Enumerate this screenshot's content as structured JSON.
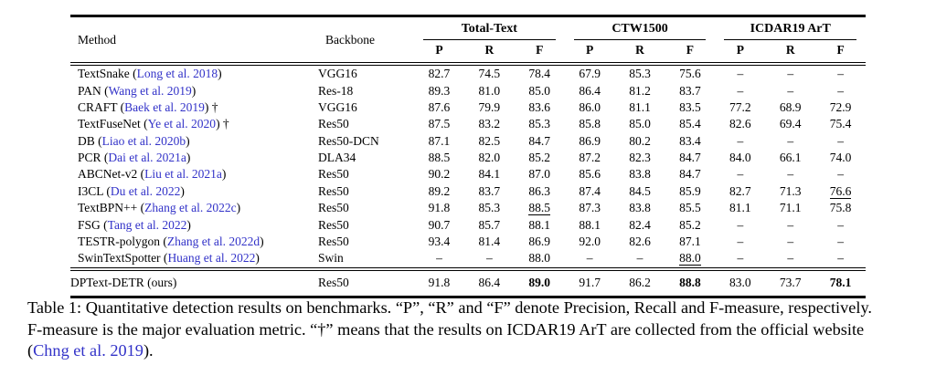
{
  "colors": {
    "citation_link": "#3232c8",
    "text": "#000000",
    "rule": "#000000",
    "background": "#ffffff"
  },
  "table": {
    "headers": {
      "method": "Method",
      "backbone": "Backbone",
      "groups": [
        {
          "label": "Total-Text"
        },
        {
          "label": "CTW1500"
        },
        {
          "label": "ICDAR19 ArT"
        }
      ],
      "metrics": [
        "P",
        "R",
        "F"
      ]
    },
    "missing_value_glyph": "–",
    "rows": [
      {
        "pre": "TextSnake (",
        "cite": "Long et al. 2018",
        "post": ")",
        "backbone": "VGG16",
        "values": [
          "82.7",
          "74.5",
          "78.4",
          "67.9",
          "85.3",
          "75.6",
          "–",
          "–",
          "–"
        ],
        "bold": [],
        "underline": [],
        "ours": false
      },
      {
        "pre": "PAN (",
        "cite": "Wang et al. 2019",
        "post": ")",
        "backbone": "Res-18",
        "values": [
          "89.3",
          "81.0",
          "85.0",
          "86.4",
          "81.2",
          "83.7",
          "–",
          "–",
          "–"
        ],
        "bold": [],
        "underline": [],
        "ours": false
      },
      {
        "pre": "CRAFT (",
        "cite": "Baek et al. 2019",
        "post": ") †",
        "backbone": "VGG16",
        "values": [
          "87.6",
          "79.9",
          "83.6",
          "86.0",
          "81.1",
          "83.5",
          "77.2",
          "68.9",
          "72.9"
        ],
        "bold": [],
        "underline": [],
        "ours": false
      },
      {
        "pre": "TextFuseNet (",
        "cite": "Ye et al. 2020",
        "post": ") †",
        "backbone": "Res50",
        "values": [
          "87.5",
          "83.2",
          "85.3",
          "85.8",
          "85.0",
          "85.4",
          "82.6",
          "69.4",
          "75.4"
        ],
        "bold": [],
        "underline": [],
        "ours": false
      },
      {
        "pre": "DB (",
        "cite": "Liao et al. 2020b",
        "post": ")",
        "backbone": "Res50-DCN",
        "values": [
          "87.1",
          "82.5",
          "84.7",
          "86.9",
          "80.2",
          "83.4",
          "–",
          "–",
          "–"
        ],
        "bold": [],
        "underline": [],
        "ours": false
      },
      {
        "pre": "PCR (",
        "cite": "Dai et al. 2021a",
        "post": ")",
        "backbone": "DLA34",
        "values": [
          "88.5",
          "82.0",
          "85.2",
          "87.2",
          "82.3",
          "84.7",
          "84.0",
          "66.1",
          "74.0"
        ],
        "bold": [],
        "underline": [],
        "ours": false
      },
      {
        "pre": "ABCNet-v2 (",
        "cite": "Liu et al. 2021a",
        "post": ")",
        "backbone": "Res50",
        "values": [
          "90.2",
          "84.1",
          "87.0",
          "85.6",
          "83.8",
          "84.7",
          "–",
          "–",
          "–"
        ],
        "bold": [],
        "underline": [],
        "ours": false
      },
      {
        "pre": "I3CL (",
        "cite": "Du et al. 2022",
        "post": ")",
        "backbone": "Res50",
        "values": [
          "89.2",
          "83.7",
          "86.3",
          "87.4",
          "84.5",
          "85.9",
          "82.7",
          "71.3",
          "76.6"
        ],
        "bold": [],
        "underline": [
          8
        ],
        "ours": false
      },
      {
        "pre": "TextBPN++ (",
        "cite": "Zhang et al. 2022c",
        "post": ")",
        "backbone": "Res50",
        "values": [
          "91.8",
          "85.3",
          "88.5",
          "87.3",
          "83.8",
          "85.5",
          "81.1",
          "71.1",
          "75.8"
        ],
        "bold": [],
        "underline": [
          2
        ],
        "ours": false
      },
      {
        "pre": "FSG (",
        "cite": "Tang et al. 2022",
        "post": ")",
        "backbone": "Res50",
        "values": [
          "90.7",
          "85.7",
          "88.1",
          "88.1",
          "82.4",
          "85.2",
          "–",
          "–",
          "–"
        ],
        "bold": [],
        "underline": [],
        "ours": false
      },
      {
        "pre": "TESTR-polygon (",
        "cite": "Zhang et al. 2022d",
        "post": ")",
        "backbone": "Res50",
        "values": [
          "93.4",
          "81.4",
          "86.9",
          "92.0",
          "82.6",
          "87.1",
          "–",
          "–",
          "–"
        ],
        "bold": [],
        "underline": [],
        "ours": false
      },
      {
        "pre": "SwinTextSpotter (",
        "cite": "Huang et al. 2022",
        "post": ")",
        "backbone": "Swin",
        "values": [
          "–",
          "–",
          "88.0",
          "–",
          "–",
          "88.0",
          "–",
          "–",
          "–"
        ],
        "bold": [],
        "underline": [
          5
        ],
        "ours": false
      },
      {
        "pre": "DPText-DETR (ours)",
        "cite": "",
        "post": "",
        "backbone": "Res50",
        "values": [
          "91.8",
          "86.4",
          "89.0",
          "91.7",
          "86.2",
          "88.8",
          "83.0",
          "73.7",
          "78.1"
        ],
        "bold": [
          2,
          5,
          8
        ],
        "underline": [],
        "ours": true
      }
    ]
  },
  "caption": {
    "line1": "Table 1: Quantitative detection results on benchmarks. “P”, “R” and “F” denote Precision, Recall and F-measure, respectively.",
    "line2": "F-measure is the major evaluation metric. “†” means that the results on ICDAR19 ArT are collected from the official website",
    "line3_pre": "(",
    "link": "Chng et al. 2019",
    "line3_post": ")."
  }
}
